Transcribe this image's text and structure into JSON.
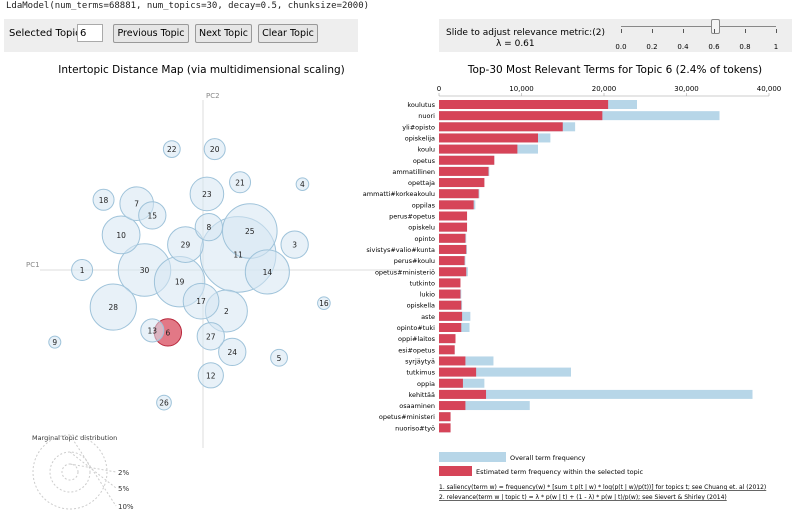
{
  "header": "LdaModel(num_terms=68881, num_topics=30, decay=0.5, chunksize=2000)",
  "controls": {
    "topic_label": "Selected Topic:",
    "topic_value": "6",
    "prev_label": "Previous Topic",
    "next_label": "Next Topic",
    "clear_label": "Clear Topic"
  },
  "relevance": {
    "label": "Slide to adjust relevance metric:(2)",
    "lambda_text": "λ = 0.61",
    "lambda": 0.61,
    "ticks": [
      "0.0",
      "0.2",
      "0.4",
      "0.6",
      "0.8",
      "1"
    ]
  },
  "left_panel": {
    "title": "Intertopic Distance Map (via multidimensional scaling)",
    "pc1": "PC1",
    "pc2": "PC2",
    "selected_topic": "6",
    "topics": [
      {
        "id": "1",
        "x": -6.2,
        "y": 0.0,
        "r": 1
      },
      {
        "id": "2",
        "x": 1.2,
        "y": -2.1,
        "r": 2
      },
      {
        "id": "3",
        "x": 4.7,
        "y": 1.3,
        "r": 1.3
      },
      {
        "id": "4",
        "x": 5.1,
        "y": 4.4,
        "r": 0.6
      },
      {
        "id": "5",
        "x": 3.9,
        "y": -4.5,
        "r": 0.8
      },
      {
        "id": "6",
        "x": -1.8,
        "y": -3.2,
        "r": 1.3
      },
      {
        "id": "7",
        "x": -3.4,
        "y": 3.4,
        "r": 1.6
      },
      {
        "id": "8",
        "x": 0.3,
        "y": 2.2,
        "r": 1.3
      },
      {
        "id": "9",
        "x": -7.6,
        "y": -3.7,
        "r": 0.5
      },
      {
        "id": "10",
        "x": -4.2,
        "y": 1.8,
        "r": 1.8
      },
      {
        "id": "11",
        "x": 1.8,
        "y": 0.8,
        "r": 3.6
      },
      {
        "id": "12",
        "x": 0.4,
        "y": -5.4,
        "r": 1.2
      },
      {
        "id": "13",
        "x": -2.6,
        "y": -3.1,
        "r": 1.1
      },
      {
        "id": "14",
        "x": 3.3,
        "y": -0.1,
        "r": 2.1
      },
      {
        "id": "15",
        "x": -2.6,
        "y": 2.8,
        "r": 1.3
      },
      {
        "id": "16",
        "x": 6.2,
        "y": -1.7,
        "r": 0.6
      },
      {
        "id": "17",
        "x": -0.1,
        "y": -1.6,
        "r": 1.7
      },
      {
        "id": "18",
        "x": -5.1,
        "y": 3.6,
        "r": 1.0
      },
      {
        "id": "19",
        "x": -1.2,
        "y": -0.6,
        "r": 2.4
      },
      {
        "id": "20",
        "x": 0.6,
        "y": 6.2,
        "r": 1.0
      },
      {
        "id": "21",
        "x": 1.9,
        "y": 4.5,
        "r": 1.0
      },
      {
        "id": "22",
        "x": -1.6,
        "y": 6.2,
        "r": 0.8
      },
      {
        "id": "23",
        "x": 0.2,
        "y": 3.9,
        "r": 1.6
      },
      {
        "id": "24",
        "x": 1.5,
        "y": -4.2,
        "r": 1.3
      },
      {
        "id": "25",
        "x": 2.4,
        "y": 2.0,
        "r": 2.6
      },
      {
        "id": "26",
        "x": -2.0,
        "y": -6.8,
        "r": 0.7
      },
      {
        "id": "27",
        "x": 0.4,
        "y": -3.4,
        "r": 1.3
      },
      {
        "id": "28",
        "x": -4.6,
        "y": -1.9,
        "r": 2.2
      },
      {
        "id": "29",
        "x": -0.9,
        "y": 1.3,
        "r": 1.7
      },
      {
        "id": "30",
        "x": -3.0,
        "y": 0.0,
        "r": 2.5
      }
    ],
    "marginal_title": "Marginal topic distribution",
    "marginal_labels": [
      "2%",
      "5%",
      "10%"
    ]
  },
  "chart_data": {
    "type": "bar",
    "title": "Top-30 Most Relevant Terms for Topic 6 (2.4% of tokens)",
    "xlim": [
      0,
      40000
    ],
    "x_ticks": [
      "0",
      "10,000",
      "20,000",
      "30,000",
      "40,000"
    ],
    "categories": [
      "koulutus",
      "nuori",
      "yli#opisto",
      "opiskelija",
      "koulu",
      "opetus",
      "ammatillinen",
      "opettaja",
      "ammatti#korkeakoulu",
      "oppilas",
      "perus#opetus",
      "opiskelu",
      "opinto",
      "sivistys#valio#kunta",
      "perus#koulu",
      "opetus#ministeriö",
      "tutkinto",
      "lukio",
      "opiskella",
      "aste",
      "opinto#tuki",
      "oppi#laitos",
      "esi#opetus",
      "syrjäytyä",
      "tutkimus",
      "oppia",
      "kehittää",
      "osaaminen",
      "opetus#ministeri",
      "nuoriso#työ"
    ],
    "series": [
      {
        "name": "Overall term frequency",
        "values": [
          24000,
          34000,
          16500,
          13500,
          12000,
          6700,
          6100,
          5500,
          4900,
          4400,
          3400,
          3400,
          3300,
          3400,
          3200,
          3500,
          2600,
          2700,
          2800,
          3800,
          3700,
          2000,
          1900,
          6600,
          16000,
          5500,
          38000,
          11000,
          1400,
          1400
        ]
      },
      {
        "name": "Estimated term frequency within the selected topic",
        "values": [
          20500,
          19800,
          15000,
          12000,
          9500,
          6700,
          6000,
          5500,
          4800,
          4200,
          3400,
          3400,
          3200,
          3300,
          3100,
          3300,
          2600,
          2600,
          2700,
          2800,
          2700,
          2000,
          1900,
          3200,
          4500,
          2900,
          5700,
          3200,
          1400,
          1400
        ]
      }
    ]
  },
  "legend": {
    "overall_label": "Overall term frequency",
    "topic_label": "Estimated term frequency within the selected topic",
    "overall_color": "#b7d6e8",
    "topic_color": "#d64458"
  },
  "footnotes": {
    "note1": "1. saliency(term w) = frequency(w) * [sum_t p(t | w) * log(p(t | w)/p(t))] for topics t; see Chuang et. al (2012)",
    "note2": "2. relevance(term w | topic t) = λ * p(w | t) + (1 - λ) * p(w | t)/p(w); see Sievert & Shirley (2014)"
  },
  "colors": {
    "bubble_fill": "#d6e6f2",
    "bubble_stroke": "#9fc3da",
    "selected_fill": "#e07180",
    "selected_stroke": "#b8283c",
    "panel_bg": "#eeeeee"
  }
}
